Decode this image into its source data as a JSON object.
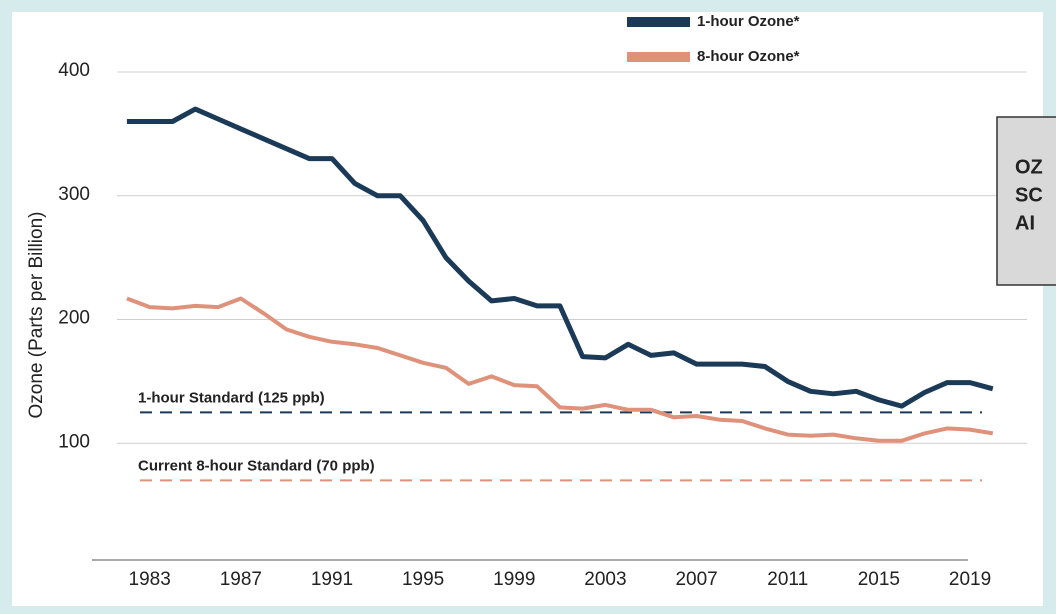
{
  "chart_data": {
    "type": "line",
    "y_label": "Ozone (Parts per Billion)",
    "x": [
      1982,
      1983,
      1984,
      1985,
      1986,
      1987,
      1988,
      1989,
      1990,
      1991,
      1992,
      1993,
      1994,
      1995,
      1996,
      1997,
      1998,
      1999,
      2000,
      2001,
      2002,
      2003,
      2004,
      2005,
      2006,
      2007,
      2008,
      2009,
      2010,
      2011,
      2012,
      2013,
      2014,
      2015,
      2016,
      2017,
      2018,
      2019,
      2020
    ],
    "series": [
      {
        "name": "1-hour Ozone*",
        "color": "#1b3a57",
        "values": [
          360,
          360,
          360,
          370,
          362,
          354,
          346,
          338,
          330,
          330,
          310,
          300,
          300,
          280,
          250,
          231,
          215,
          217,
          211,
          211,
          170,
          169,
          180,
          171,
          173,
          164,
          164,
          164,
          162,
          150,
          142,
          140,
          142,
          135,
          130,
          141,
          149,
          149,
          144
        ]
      },
      {
        "name": "8-hour Ozone*",
        "color": "#e0917a",
        "values": [
          217,
          210,
          209,
          211,
          210,
          217,
          205,
          192,
          186,
          182,
          180,
          177,
          171,
          165,
          161,
          148,
          154,
          147,
          146,
          129,
          128,
          131,
          127,
          127,
          121,
          122,
          119,
          118,
          112,
          107,
          106,
          107,
          104,
          102,
          102,
          108,
          112,
          111,
          108
        ]
      }
    ],
    "reference_lines": [
      {
        "label": "1-hour Standard (125 ppb)",
        "value": 125,
        "color": "#1b3a57"
      },
      {
        "label": "Current 8-hour Standard (70 ppb)",
        "value": 70,
        "color": "#e0917a"
      }
    ],
    "annotation_box": [
      "OZ",
      "SC",
      "AI"
    ],
    "xlim": [
      1980.6,
      2021.5
    ],
    "xticks": [
      1983,
      1987,
      1991,
      1995,
      1999,
      2003,
      2007,
      2011,
      2015,
      2019
    ],
    "ylim": [
      0,
      400
    ],
    "yticks": [
      100,
      200,
      300,
      400
    ],
    "grid": true
  }
}
